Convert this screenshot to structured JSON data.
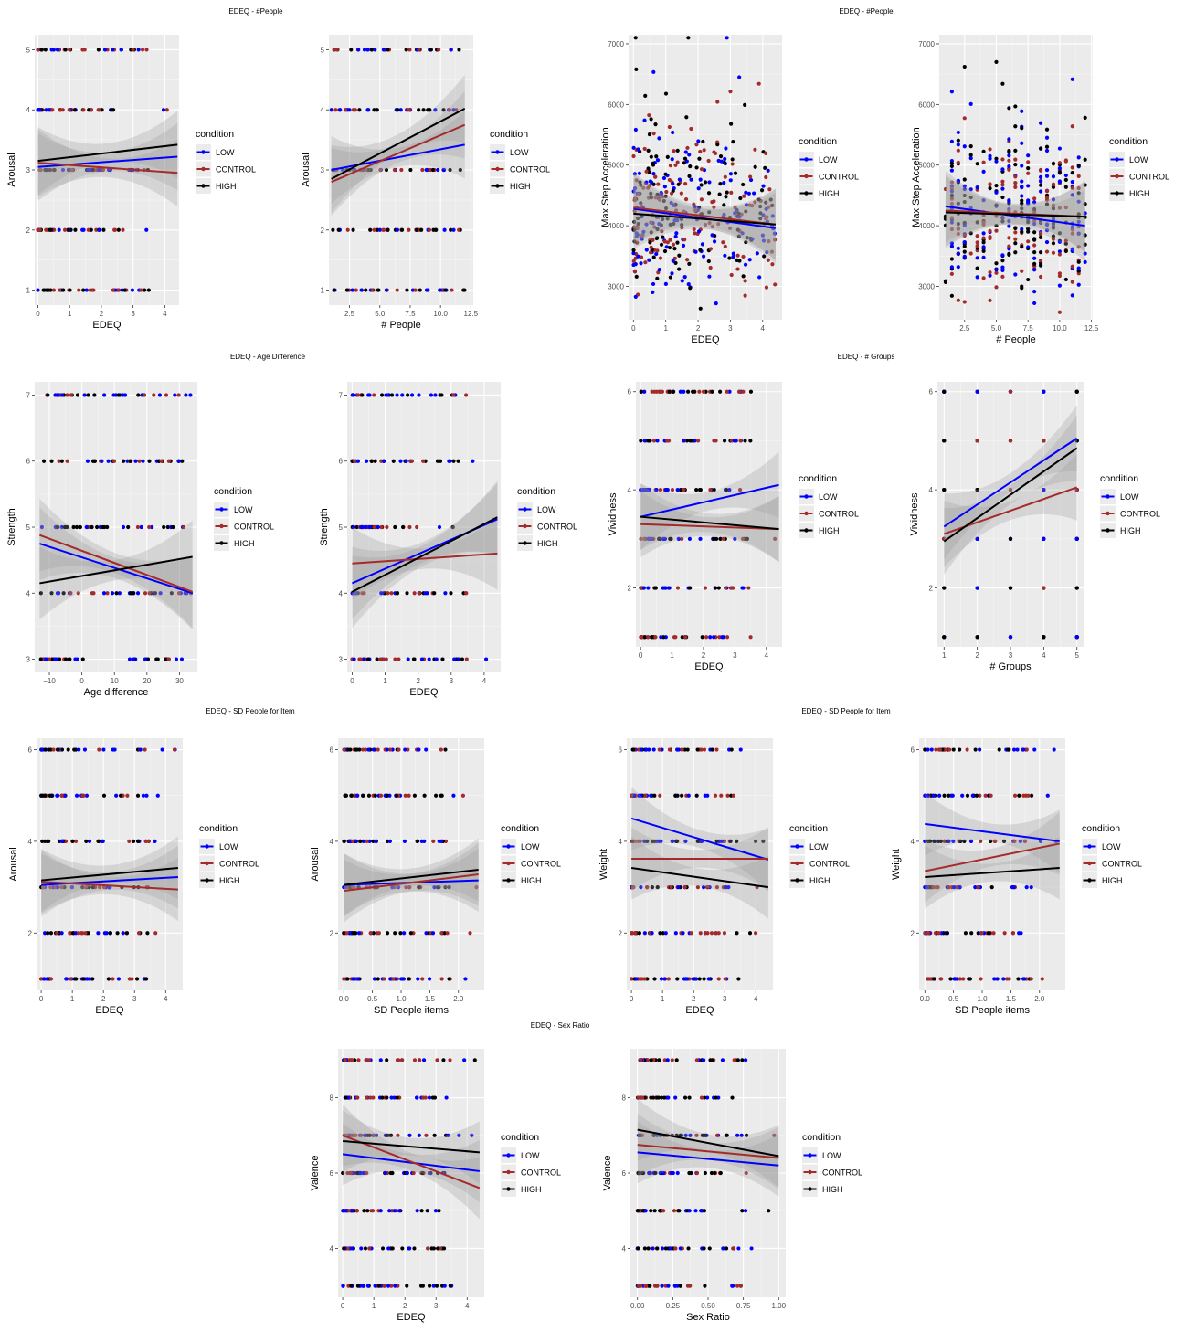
{
  "colors": {
    "LOW": "#0000ff",
    "CONTROL": "#a52a2a",
    "HIGH": "#000000",
    "panel_bg": "#ebebeb",
    "grid": "#ffffff",
    "ribbon": "#999999"
  },
  "legend": {
    "title": "condition",
    "items": [
      "LOW",
      "CONTROL",
      "HIGH"
    ]
  },
  "sections": [
    {
      "id": "s1",
      "title": "EDEQ - #People"
    },
    {
      "id": "s2",
      "title": "EDEQ - #People"
    },
    {
      "id": "s3",
      "title": "EDEQ - Age Difference"
    },
    {
      "id": "s4",
      "title": "EDEQ - # Groups"
    },
    {
      "id": "s5",
      "title": "EDEQ - SD People for Item"
    },
    {
      "id": "s6",
      "title": "EDEQ - SD People for Item"
    },
    {
      "id": "s7",
      "title": "EDEQ - Sex Ratio"
    }
  ],
  "chart_data": [
    {
      "type": "scatter",
      "xlabel": "EDEQ",
      "ylabel": "Arousal",
      "xlim": [
        -0.1,
        4.45
      ],
      "ylim": [
        0.75,
        5.25
      ],
      "xticks": [
        0,
        1,
        2,
        3,
        4
      ],
      "xticklabels": [
        "0",
        "1",
        "2",
        "3",
        "4"
      ],
      "yticks": [
        1,
        2,
        3,
        4,
        5
      ],
      "yticklabels": [
        "1",
        "2",
        "3",
        "4",
        "5"
      ],
      "trend": {
        "LOW": [
          [
            0,
            3.05
          ],
          [
            4.4,
            3.22
          ]
        ],
        "CONTROL": [
          [
            0,
            3.12
          ],
          [
            4.4,
            2.95
          ]
        ],
        "HIGH": [
          [
            0,
            3.15
          ],
          [
            4.4,
            3.42
          ]
        ]
      },
      "grid": true,
      "legend_position": "right",
      "points": {
        "levels": [
          1,
          2,
          3,
          4,
          5
        ],
        "xmax": 4.4
      }
    },
    {
      "type": "scatter",
      "xlabel": "# People",
      "ylabel": "Arousal",
      "xlim": [
        0.8,
        12.7
      ],
      "ylim": [
        0.75,
        5.25
      ],
      "xticks": [
        2.5,
        5,
        7.5,
        10,
        12.5
      ],
      "xticklabels": [
        "2.5",
        "5.0",
        "7.5",
        "10.0",
        "12.5"
      ],
      "yticks": [
        1,
        2,
        3,
        4,
        5
      ],
      "yticklabels": [
        "1",
        "2",
        "3",
        "4",
        "5"
      ],
      "trend": {
        "LOW": [
          [
            1,
            3.0
          ],
          [
            12,
            3.42
          ]
        ],
        "CONTROL": [
          [
            1,
            2.8
          ],
          [
            12,
            3.75
          ]
        ],
        "HIGH": [
          [
            1,
            2.85
          ],
          [
            12,
            4.02
          ]
        ]
      },
      "grid": true,
      "legend_position": "right",
      "points": {
        "levels": [
          1,
          2,
          3,
          4,
          5
        ],
        "xmin": 1,
        "xmax": 12
      }
    },
    {
      "type": "scatter",
      "xlabel": "EDEQ",
      "ylabel": "Max Step Acceleration",
      "xlim": [
        -0.15,
        4.6
      ],
      "ylim": [
        2450,
        7150
      ],
      "xticks": [
        0,
        1,
        2,
        3,
        4
      ],
      "xticklabels": [
        "0",
        "1",
        "2",
        "3",
        "4"
      ],
      "yticks": [
        3000,
        4000,
        5000,
        6000,
        7000
      ],
      "yticklabels": [
        "3000",
        "4000",
        "5000",
        "6000",
        "7000"
      ],
      "trend": {
        "LOW": [
          [
            0,
            4280
          ],
          [
            4.4,
            3960
          ]
        ],
        "CONTROL": [
          [
            0,
            4300
          ],
          [
            4.4,
            4020
          ]
        ],
        "HIGH": [
          [
            0,
            4200
          ],
          [
            4.4,
            4020
          ]
        ]
      },
      "grid": true,
      "legend_position": "right",
      "points": {
        "continuous": true,
        "xmax": 4.4
      }
    },
    {
      "type": "scatter",
      "xlabel": "# People",
      "ylabel": "Max Step Acceleration",
      "xlim": [
        0.5,
        12.6
      ],
      "ylim": [
        2450,
        7150
      ],
      "xticks": [
        2.5,
        5,
        7.5,
        10,
        12.5
      ],
      "xticklabels": [
        "2.5",
        "5.0",
        "7.5",
        "10.0",
        "12.5"
      ],
      "yticks": [
        3000,
        4000,
        5000,
        6000,
        7000
      ],
      "yticklabels": [
        "3000",
        "4000",
        "5000",
        "6000",
        "7000"
      ],
      "trend": {
        "LOW": [
          [
            1,
            4320
          ],
          [
            12,
            4000
          ]
        ],
        "CONTROL": [
          [
            1,
            4250
          ],
          [
            12,
            4150
          ]
        ],
        "HIGH": [
          [
            1,
            4220
          ],
          [
            12,
            4150
          ]
        ]
      },
      "grid": true,
      "legend_position": "right",
      "points": {
        "continuous": true,
        "xmin": 1,
        "xmax": 12
      }
    },
    {
      "type": "scatter",
      "xlabel": "Age difference",
      "ylabel": "Strength",
      "xlim": [
        -14.5,
        35.5
      ],
      "ylim": [
        2.8,
        7.2
      ],
      "xticks": [
        -10,
        0,
        10,
        20,
        30
      ],
      "xticklabels": [
        "−10",
        "0",
        "10",
        "20",
        "30"
      ],
      "yticks": [
        3,
        4,
        5,
        6,
        7
      ],
      "yticklabels": [
        "3",
        "4",
        "5",
        "6",
        "7"
      ],
      "trend": {
        "LOW": [
          [
            -13,
            4.75
          ],
          [
            34,
            4.0
          ]
        ],
        "CONTROL": [
          [
            -13,
            4.88
          ],
          [
            34,
            4.02
          ]
        ],
        "HIGH": [
          [
            -13,
            4.15
          ],
          [
            34,
            4.55
          ]
        ]
      },
      "grid": true,
      "legend_position": "right",
      "points": {
        "levels": [
          3,
          4,
          5,
          6,
          7
        ],
        "xmin": -13,
        "xmax": 34
      }
    },
    {
      "type": "scatter",
      "xlabel": "EDEQ",
      "ylabel": "Strength",
      "xlim": [
        -0.15,
        4.5
      ],
      "ylim": [
        2.8,
        7.2
      ],
      "xticks": [
        0,
        1,
        2,
        3,
        4
      ],
      "xticklabels": [
        "0",
        "1",
        "2",
        "3",
        "4"
      ],
      "yticks": [
        3,
        4,
        5,
        6,
        7
      ],
      "yticklabels": [
        "3",
        "4",
        "5",
        "6",
        "7"
      ],
      "trend": {
        "LOW": [
          [
            0,
            4.15
          ],
          [
            4.4,
            5.12
          ]
        ],
        "CONTROL": [
          [
            0,
            4.45
          ],
          [
            4.4,
            4.6
          ]
        ],
        "HIGH": [
          [
            0,
            4.02
          ],
          [
            4.4,
            5.15
          ]
        ]
      },
      "grid": true,
      "legend_position": "right",
      "points": {
        "levels": [
          3,
          4,
          5,
          6,
          7
        ],
        "xmax": 4.4
      }
    },
    {
      "type": "scatter",
      "xlabel": "EDEQ",
      "ylabel": "Vividness",
      "xlim": [
        -0.15,
        4.5
      ],
      "ylim": [
        0.8,
        6.2
      ],
      "xticks": [
        0,
        1,
        2,
        3,
        4
      ],
      "xticklabels": [
        "0",
        "1",
        "2",
        "3",
        "4"
      ],
      "yticks": [
        2,
        4,
        6
      ],
      "yticklabels": [
        "2",
        "4",
        "6"
      ],
      "trend": {
        "LOW": [
          [
            0,
            3.45
          ],
          [
            4.4,
            4.1
          ]
        ],
        "CONTROL": [
          [
            0,
            3.3
          ],
          [
            4.4,
            3.2
          ]
        ],
        "HIGH": [
          [
            0,
            3.45
          ],
          [
            4.4,
            3.2
          ]
        ]
      },
      "grid": true,
      "legend_position": "right",
      "points": {
        "levels": [
          1,
          2,
          3,
          4,
          5,
          6
        ],
        "xmax": 4.4
      }
    },
    {
      "type": "scatter",
      "xlabel": "# Groups",
      "ylabel": "Vividness",
      "xlim": [
        0.8,
        5.2
      ],
      "ylim": [
        0.8,
        6.2
      ],
      "xticks": [
        1,
        2,
        3,
        4,
        5
      ],
      "xticklabels": [
        "1",
        "2",
        "3",
        "4",
        "5"
      ],
      "yticks": [
        2,
        4,
        6
      ],
      "yticklabels": [
        "2",
        "4",
        "6"
      ],
      "trend": {
        "LOW": [
          [
            1,
            3.25
          ],
          [
            5,
            5.05
          ]
        ],
        "CONTROL": [
          [
            1,
            3.1
          ],
          [
            5,
            4.05
          ]
        ],
        "HIGH": [
          [
            1,
            2.95
          ],
          [
            5,
            4.85
          ]
        ]
      },
      "grid": true,
      "legend_position": "right",
      "points": {
        "levels": [
          1,
          2,
          3,
          4,
          5,
          6
        ],
        "xmin": 1,
        "xmax": 5,
        "integer_x": true
      }
    },
    {
      "type": "scatter",
      "xlabel": "EDEQ",
      "ylabel": "Arousal",
      "xlim": [
        -0.15,
        4.55
      ],
      "ylim": [
        0.75,
        6.25
      ],
      "xticks": [
        0,
        1,
        2,
        3,
        4
      ],
      "xticklabels": [
        "0",
        "1",
        "2",
        "3",
        "4"
      ],
      "yticks": [
        2,
        4,
        6
      ],
      "yticklabels": [
        "2",
        "4",
        "6"
      ],
      "trend": {
        "LOW": [
          [
            0,
            3.05
          ],
          [
            4.4,
            3.22
          ]
        ],
        "CONTROL": [
          [
            0,
            3.12
          ],
          [
            4.4,
            2.95
          ]
        ],
        "HIGH": [
          [
            0,
            3.15
          ],
          [
            4.4,
            3.42
          ]
        ]
      },
      "grid": true,
      "legend_position": "right",
      "points": {
        "levels": [
          1,
          2,
          3,
          4,
          5,
          6
        ],
        "xmax": 4.4
      }
    },
    {
      "type": "scatter",
      "xlabel": "SD People items",
      "ylabel": "Arousal",
      "xlim": [
        -0.1,
        2.45
      ],
      "ylim": [
        0.75,
        6.25
      ],
      "xticks": [
        0,
        0.5,
        1,
        1.5,
        2
      ],
      "xticklabels": [
        "0.0",
        "0.5",
        "1.0",
        "1.5",
        "2.0"
      ],
      "yticks": [
        2,
        4,
        6
      ],
      "yticklabels": [
        "2",
        "4",
        "6"
      ],
      "trend": {
        "LOW": [
          [
            0,
            3.05
          ],
          [
            2.35,
            3.15
          ]
        ],
        "CONTROL": [
          [
            0,
            2.92
          ],
          [
            2.35,
            3.28
          ]
        ],
        "HIGH": [
          [
            0,
            3.05
          ],
          [
            2.35,
            3.38
          ]
        ]
      },
      "grid": true,
      "legend_position": "right",
      "points": {
        "levels": [
          1,
          2,
          3,
          4,
          5,
          6
        ],
        "xmax": 2.35
      }
    },
    {
      "type": "scatter",
      "xlabel": "EDEQ",
      "ylabel": "Weight",
      "xlim": [
        -0.15,
        4.55
      ],
      "ylim": [
        0.75,
        6.25
      ],
      "xticks": [
        0,
        1,
        2,
        3,
        4
      ],
      "xticklabels": [
        "0",
        "1",
        "2",
        "3",
        "4"
      ],
      "yticks": [
        2,
        4,
        6
      ],
      "yticklabels": [
        "2",
        "4",
        "6"
      ],
      "trend": {
        "LOW": [
          [
            0,
            4.5
          ],
          [
            4.4,
            3.6
          ]
        ],
        "CONTROL": [
          [
            0,
            3.62
          ],
          [
            4.4,
            3.62
          ]
        ],
        "HIGH": [
          [
            0,
            3.42
          ],
          [
            4.4,
            3.0
          ]
        ]
      },
      "grid": true,
      "legend_position": "right",
      "points": {
        "levels": [
          1,
          2,
          3,
          4,
          5,
          6
        ],
        "xmax": 4.4
      }
    },
    {
      "type": "scatter",
      "xlabel": "SD People items",
      "ylabel": "Weight",
      "xlim": [
        -0.1,
        2.45
      ],
      "ylim": [
        0.75,
        6.25
      ],
      "xticks": [
        0,
        0.5,
        1,
        1.5,
        2
      ],
      "xticklabels": [
        "0.0",
        "0.5",
        "1.0",
        "1.5",
        "2.0"
      ],
      "yticks": [
        2,
        4,
        6
      ],
      "yticklabels": [
        "2",
        "4",
        "6"
      ],
      "trend": {
        "LOW": [
          [
            0,
            4.38
          ],
          [
            2.35,
            4.0
          ]
        ],
        "CONTROL": [
          [
            0,
            3.35
          ],
          [
            2.35,
            3.95
          ]
        ],
        "HIGH": [
          [
            0,
            3.22
          ],
          [
            2.35,
            3.42
          ]
        ]
      },
      "grid": true,
      "legend_position": "right",
      "points": {
        "levels": [
          1,
          2,
          3,
          4,
          5,
          6
        ],
        "xmax": 2.35
      }
    },
    {
      "type": "scatter",
      "xlabel": "EDEQ",
      "ylabel": "Valence",
      "xlim": [
        -0.15,
        4.55
      ],
      "ylim": [
        2.7,
        9.3
      ],
      "xticks": [
        0,
        1,
        2,
        3,
        4
      ],
      "xticklabels": [
        "0",
        "1",
        "2",
        "3",
        "4"
      ],
      "yticks": [
        4,
        6,
        8
      ],
      "yticklabels": [
        "4",
        "6",
        "8"
      ],
      "trend": {
        "LOW": [
          [
            0,
            6.5
          ],
          [
            4.4,
            6.05
          ]
        ],
        "CONTROL": [
          [
            0,
            7.0
          ],
          [
            4.4,
            5.6
          ]
        ],
        "HIGH": [
          [
            0,
            6.85
          ],
          [
            4.4,
            6.55
          ]
        ]
      },
      "grid": true,
      "legend_position": "right",
      "points": {
        "levels": [
          3,
          4,
          5,
          6,
          7,
          8,
          9
        ],
        "xmax": 4.4
      }
    },
    {
      "type": "scatter",
      "xlabel": "Sex Ratio",
      "ylabel": "Valence",
      "xlim": [
        -0.05,
        1.05
      ],
      "ylim": [
        2.7,
        9.3
      ],
      "xticks": [
        0,
        0.25,
        0.5,
        0.75,
        1
      ],
      "xticklabels": [
        "0.00",
        "0.25",
        "0.50",
        "0.75",
        "1.00"
      ],
      "yticks": [
        4,
        6,
        8
      ],
      "yticklabels": [
        "4",
        "6",
        "8"
      ],
      "trend": {
        "LOW": [
          [
            0,
            6.55
          ],
          [
            1,
            6.2
          ]
        ],
        "CONTROL": [
          [
            0,
            6.75
          ],
          [
            1,
            6.4
          ]
        ],
        "HIGH": [
          [
            0,
            7.15
          ],
          [
            1,
            6.45
          ]
        ]
      },
      "grid": true,
      "legend_position": "right",
      "points": {
        "levels": [
          3,
          4,
          5,
          6,
          7,
          8,
          9
        ],
        "xmax": 1
      }
    }
  ]
}
